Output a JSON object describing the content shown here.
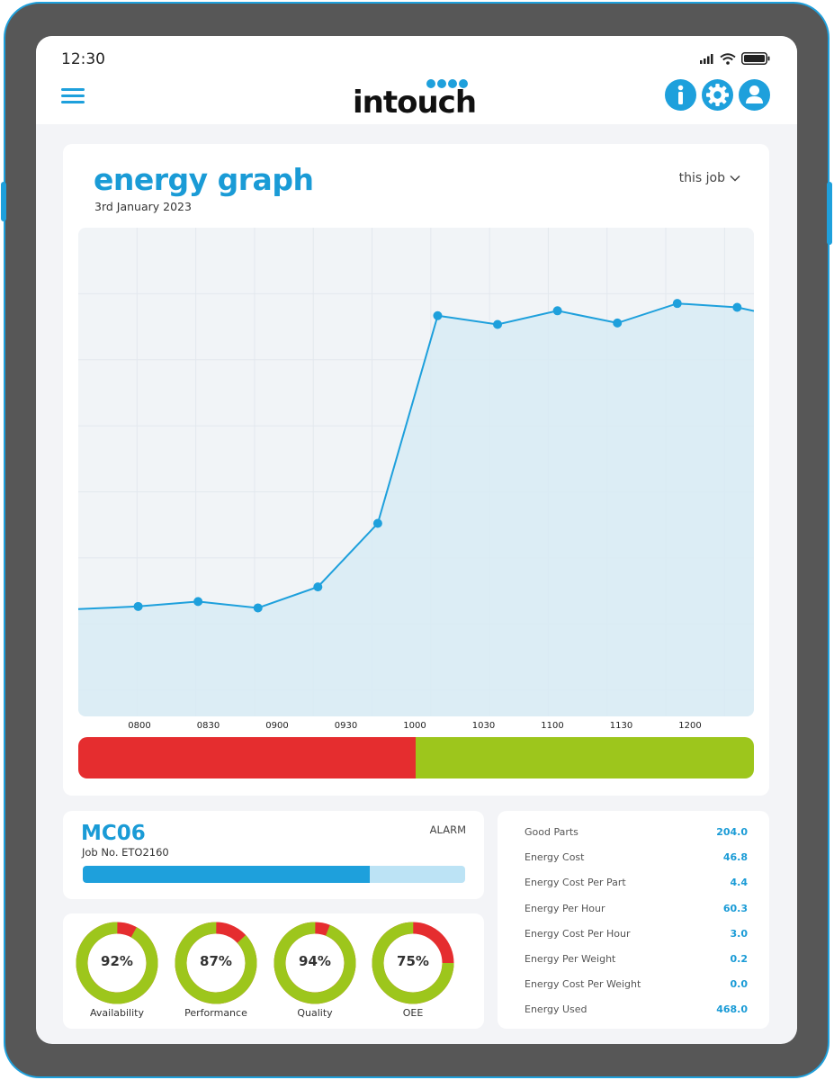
{
  "status_bar": {
    "time": "12:30"
  },
  "header": {
    "logo_text": "intouch"
  },
  "graph": {
    "title": "energy graph",
    "date": "3rd January 2023",
    "range_select": "this job"
  },
  "chart_data": {
    "type": "area",
    "title": "energy graph",
    "xlabel": "",
    "ylabel": "",
    "ticks": [
      "0800",
      "0830",
      "0900",
      "0930",
      "1000",
      "1030",
      "1100",
      "1130",
      "1200"
    ],
    "points": [
      {
        "x": 0.125,
        "y": 22.5
      },
      {
        "x": 0.25,
        "y": 23.5
      },
      {
        "x": 0.375,
        "y": 22.2
      },
      {
        "x": 0.5,
        "y": 26.5
      },
      {
        "x": 0.625,
        "y": 39.5
      },
      {
        "x": 0.75,
        "y": 82.0
      },
      {
        "x": 0.875,
        "y": 80.2
      },
      {
        "x": 1.0,
        "y": 83.0
      },
      {
        "x": 1.125,
        "y": 80.5
      },
      {
        "x": 1.25,
        "y": 84.5
      },
      {
        "x": 1.375,
        "y": 83.7
      }
    ],
    "x_range": [
      0,
      1.41
    ],
    "y_range": [
      0,
      100
    ],
    "line_color": "#1ea0dc",
    "fill_color": "#d8ebf4",
    "grid": true
  },
  "status_strip": {
    "red_fraction": 0.499,
    "red_color": "#e52d2f",
    "green_color": "#9dc61c"
  },
  "machine": {
    "name": "MC06",
    "job_no": "Job No. ETO2160",
    "status": "ALARM",
    "progress": 0.75
  },
  "kpis": [
    {
      "label": "Availability",
      "value": "92%",
      "fraction": 0.92
    },
    {
      "label": "Performance",
      "value": "87%",
      "fraction": 0.87
    },
    {
      "label": "Quality",
      "value": "94%",
      "fraction": 0.94
    },
    {
      "label": "OEE",
      "value": "75%",
      "fraction": 0.75
    }
  ],
  "stats": [
    {
      "label": "Good Parts",
      "value": "204.0"
    },
    {
      "label": "Energy Cost",
      "value": "46.8"
    },
    {
      "label": "Energy Cost Per Part",
      "value": "4.4"
    },
    {
      "label": "Energy Per Hour",
      "value": "60.3"
    },
    {
      "label": "Energy Cost Per Hour",
      "value": "3.0"
    },
    {
      "label": "Energy Per Weight",
      "value": "0.2"
    },
    {
      "label": "Energy Cost Per Weight",
      "value": "0.0"
    },
    {
      "label": "Energy Used",
      "value": "468.0"
    }
  ],
  "icons": {
    "menu": "hamburger-icon",
    "info": "info-icon",
    "settings": "gear-icon",
    "user": "user-icon",
    "chevron": "chevron-down-icon",
    "signal": "signal-icon",
    "wifi": "wifi-icon",
    "battery": "battery-icon"
  },
  "colors": {
    "accent": "#1ea0dc",
    "ok": "#9dc61c",
    "alarm": "#e52d2f",
    "device": "#575757"
  }
}
